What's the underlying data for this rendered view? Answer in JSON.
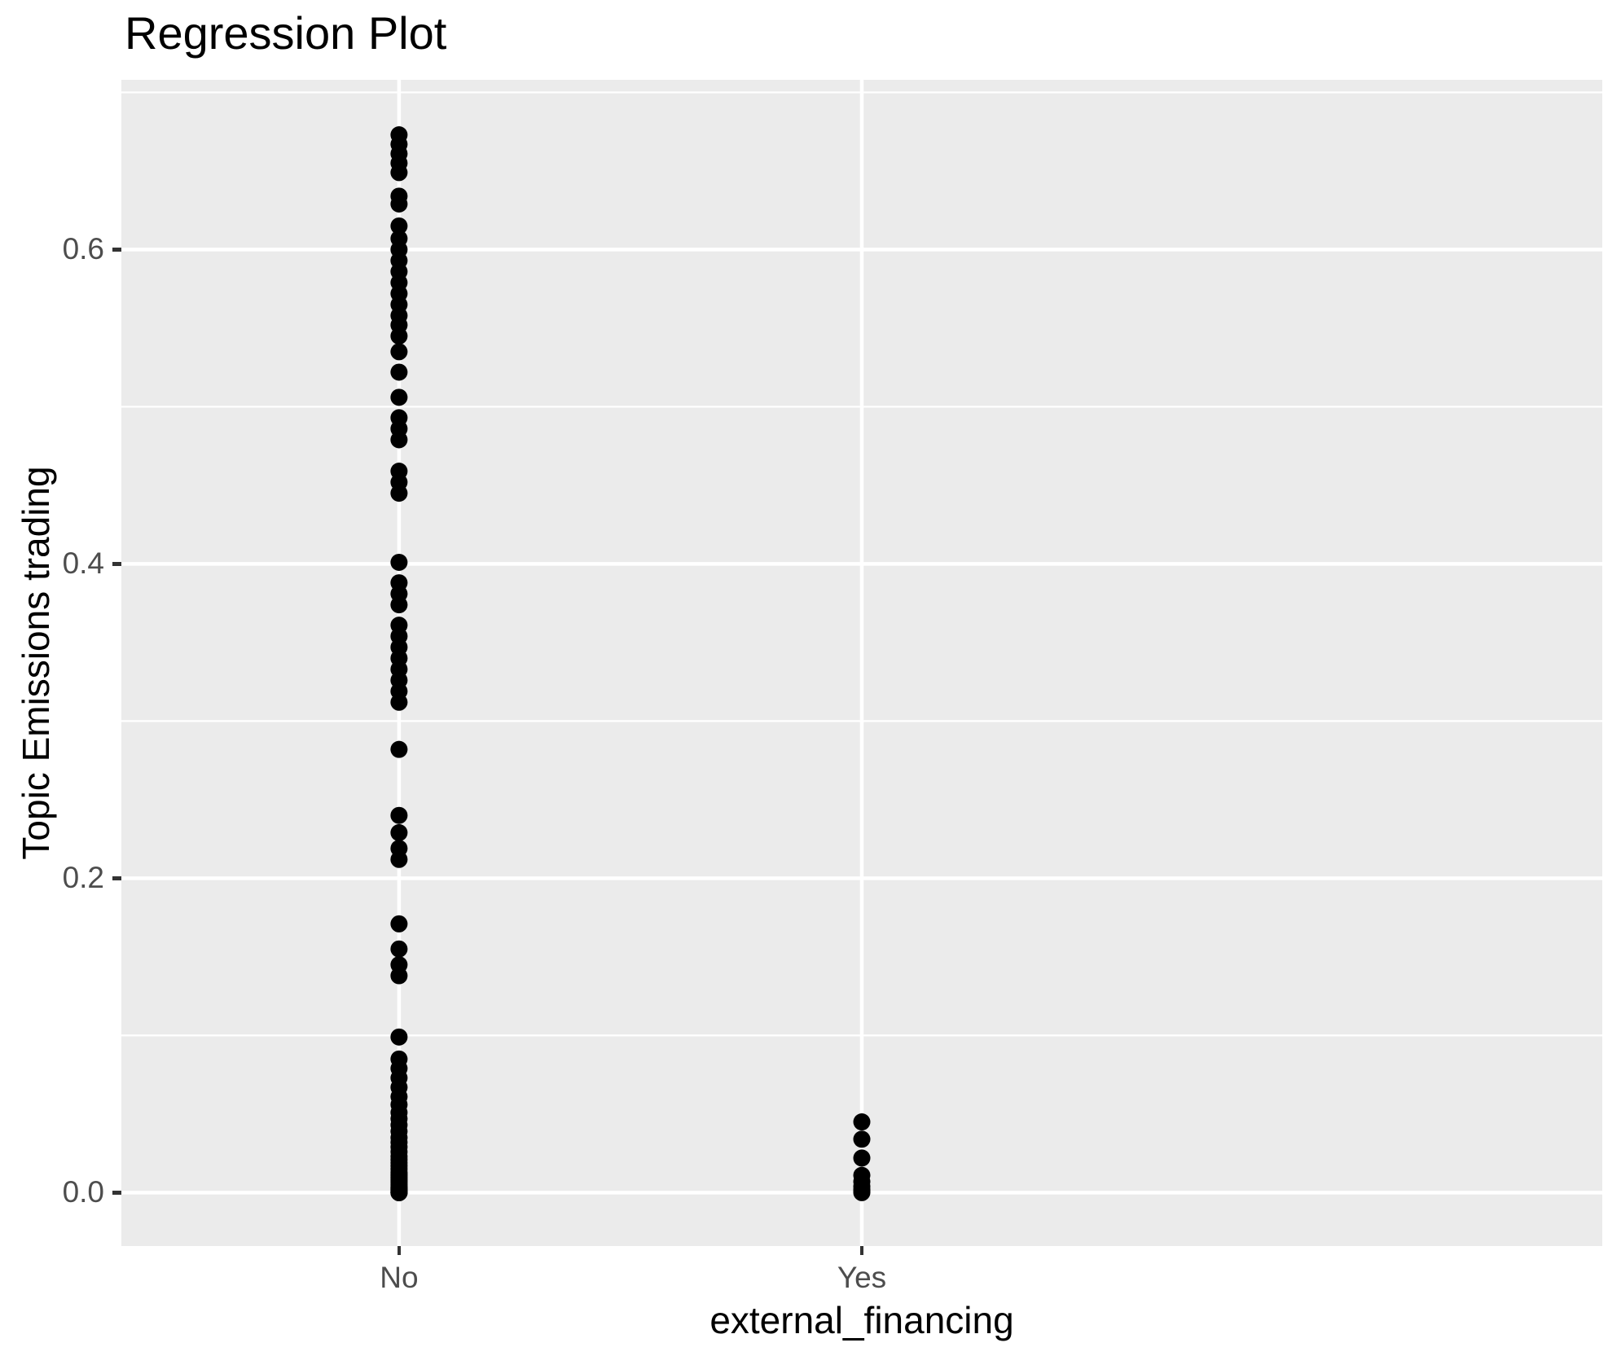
{
  "title": "Regression Plot",
  "colors": {
    "panel_background": "#EBEBEB",
    "grid_line": "#FFFFFF",
    "point": "#000000",
    "tick_label": "#4D4D4D",
    "tick_mark": "#333333",
    "axis_title": "#000000",
    "title": "#000000",
    "figure_background": "#FFFFFF"
  },
  "chart_data": {
    "type": "scatter",
    "title": "Regression Plot",
    "xlabel": "external_financing",
    "ylabel": "Topic Emissions trading",
    "categories": [
      "No",
      "Yes"
    ],
    "y_ticks": [
      0.0,
      0.2,
      0.4,
      0.6
    ],
    "y_tick_labels": [
      "0.0",
      "0.2",
      "0.4",
      "0.6"
    ],
    "y_minor_ticks": [
      0.1,
      0.3,
      0.5,
      0.7
    ],
    "ylim": [
      -0.034,
      0.708
    ],
    "grid": "major-and-minor horizontal white, major vertical white at category positions",
    "legend": "none",
    "point_radius_px": 10.5,
    "series": [
      {
        "name": "No",
        "values": [
          0.673,
          0.667,
          0.661,
          0.655,
          0.649,
          0.634,
          0.629,
          0.615,
          0.607,
          0.6,
          0.593,
          0.586,
          0.579,
          0.572,
          0.565,
          0.558,
          0.552,
          0.545,
          0.535,
          0.522,
          0.506,
          0.493,
          0.486,
          0.479,
          0.459,
          0.452,
          0.445,
          0.401,
          0.388,
          0.381,
          0.374,
          0.361,
          0.354,
          0.347,
          0.34,
          0.333,
          0.326,
          0.319,
          0.312,
          0.282,
          0.24,
          0.229,
          0.219,
          0.212,
          0.171,
          0.155,
          0.145,
          0.138,
          0.099,
          0.085,
          0.079,
          0.073,
          0.067,
          0.061,
          0.056,
          0.051,
          0.047,
          0.043,
          0.039,
          0.035,
          0.032,
          0.029,
          0.026,
          0.023,
          0.021,
          0.019,
          0.017,
          0.015,
          0.013,
          0.012,
          0.011,
          0.01,
          0.009,
          0.008,
          0.007,
          0.006,
          0.005,
          0.004,
          0.003,
          0.003,
          0.002,
          0.002,
          0.001,
          0.001,
          0.0,
          0.0,
          0.0,
          0.0
        ]
      },
      {
        "name": "Yes",
        "values": [
          0.045,
          0.034,
          0.022,
          0.011,
          0.007,
          0.004,
          0.002,
          0.001,
          0.0
        ]
      }
    ]
  }
}
